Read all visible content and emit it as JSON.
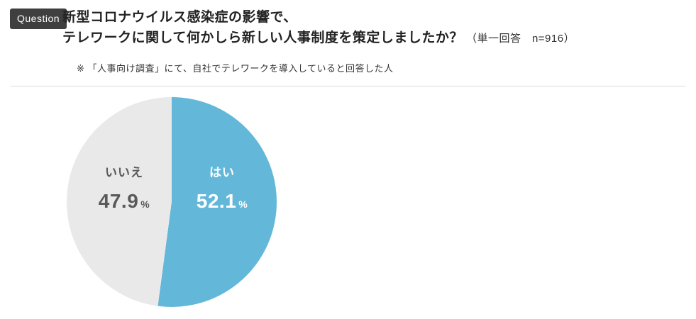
{
  "header": {
    "badge": "Question",
    "title_line1": "新型コロナウイルス感染症の影響で、",
    "title_line2": "テレワークに関して何かしら新しい人事制度を策定しましたか？",
    "title_suffix": "（単一回答　n=916）",
    "note": "※ 「人事向け調査」にて、自社でテレワークを導入していると回答した人"
  },
  "chart_data": {
    "type": "pie",
    "title": "新型コロナウイルス感染症の影響で、テレワークに関して何かしら新しい人事制度を策定しましたか？",
    "subtitle": "（単一回答　n=916）",
    "categories": [
      "はい",
      "いいえ"
    ],
    "values": [
      52.1,
      47.9
    ],
    "unit": "％",
    "unit_display": "%",
    "colors": [
      "#63b8da",
      "#e9e9e9"
    ],
    "label_text_colors": [
      "#ffffff",
      "#595959"
    ],
    "start_angle": "12-oclock",
    "direction": "clockwise",
    "legend_position": "inside-slices"
  }
}
